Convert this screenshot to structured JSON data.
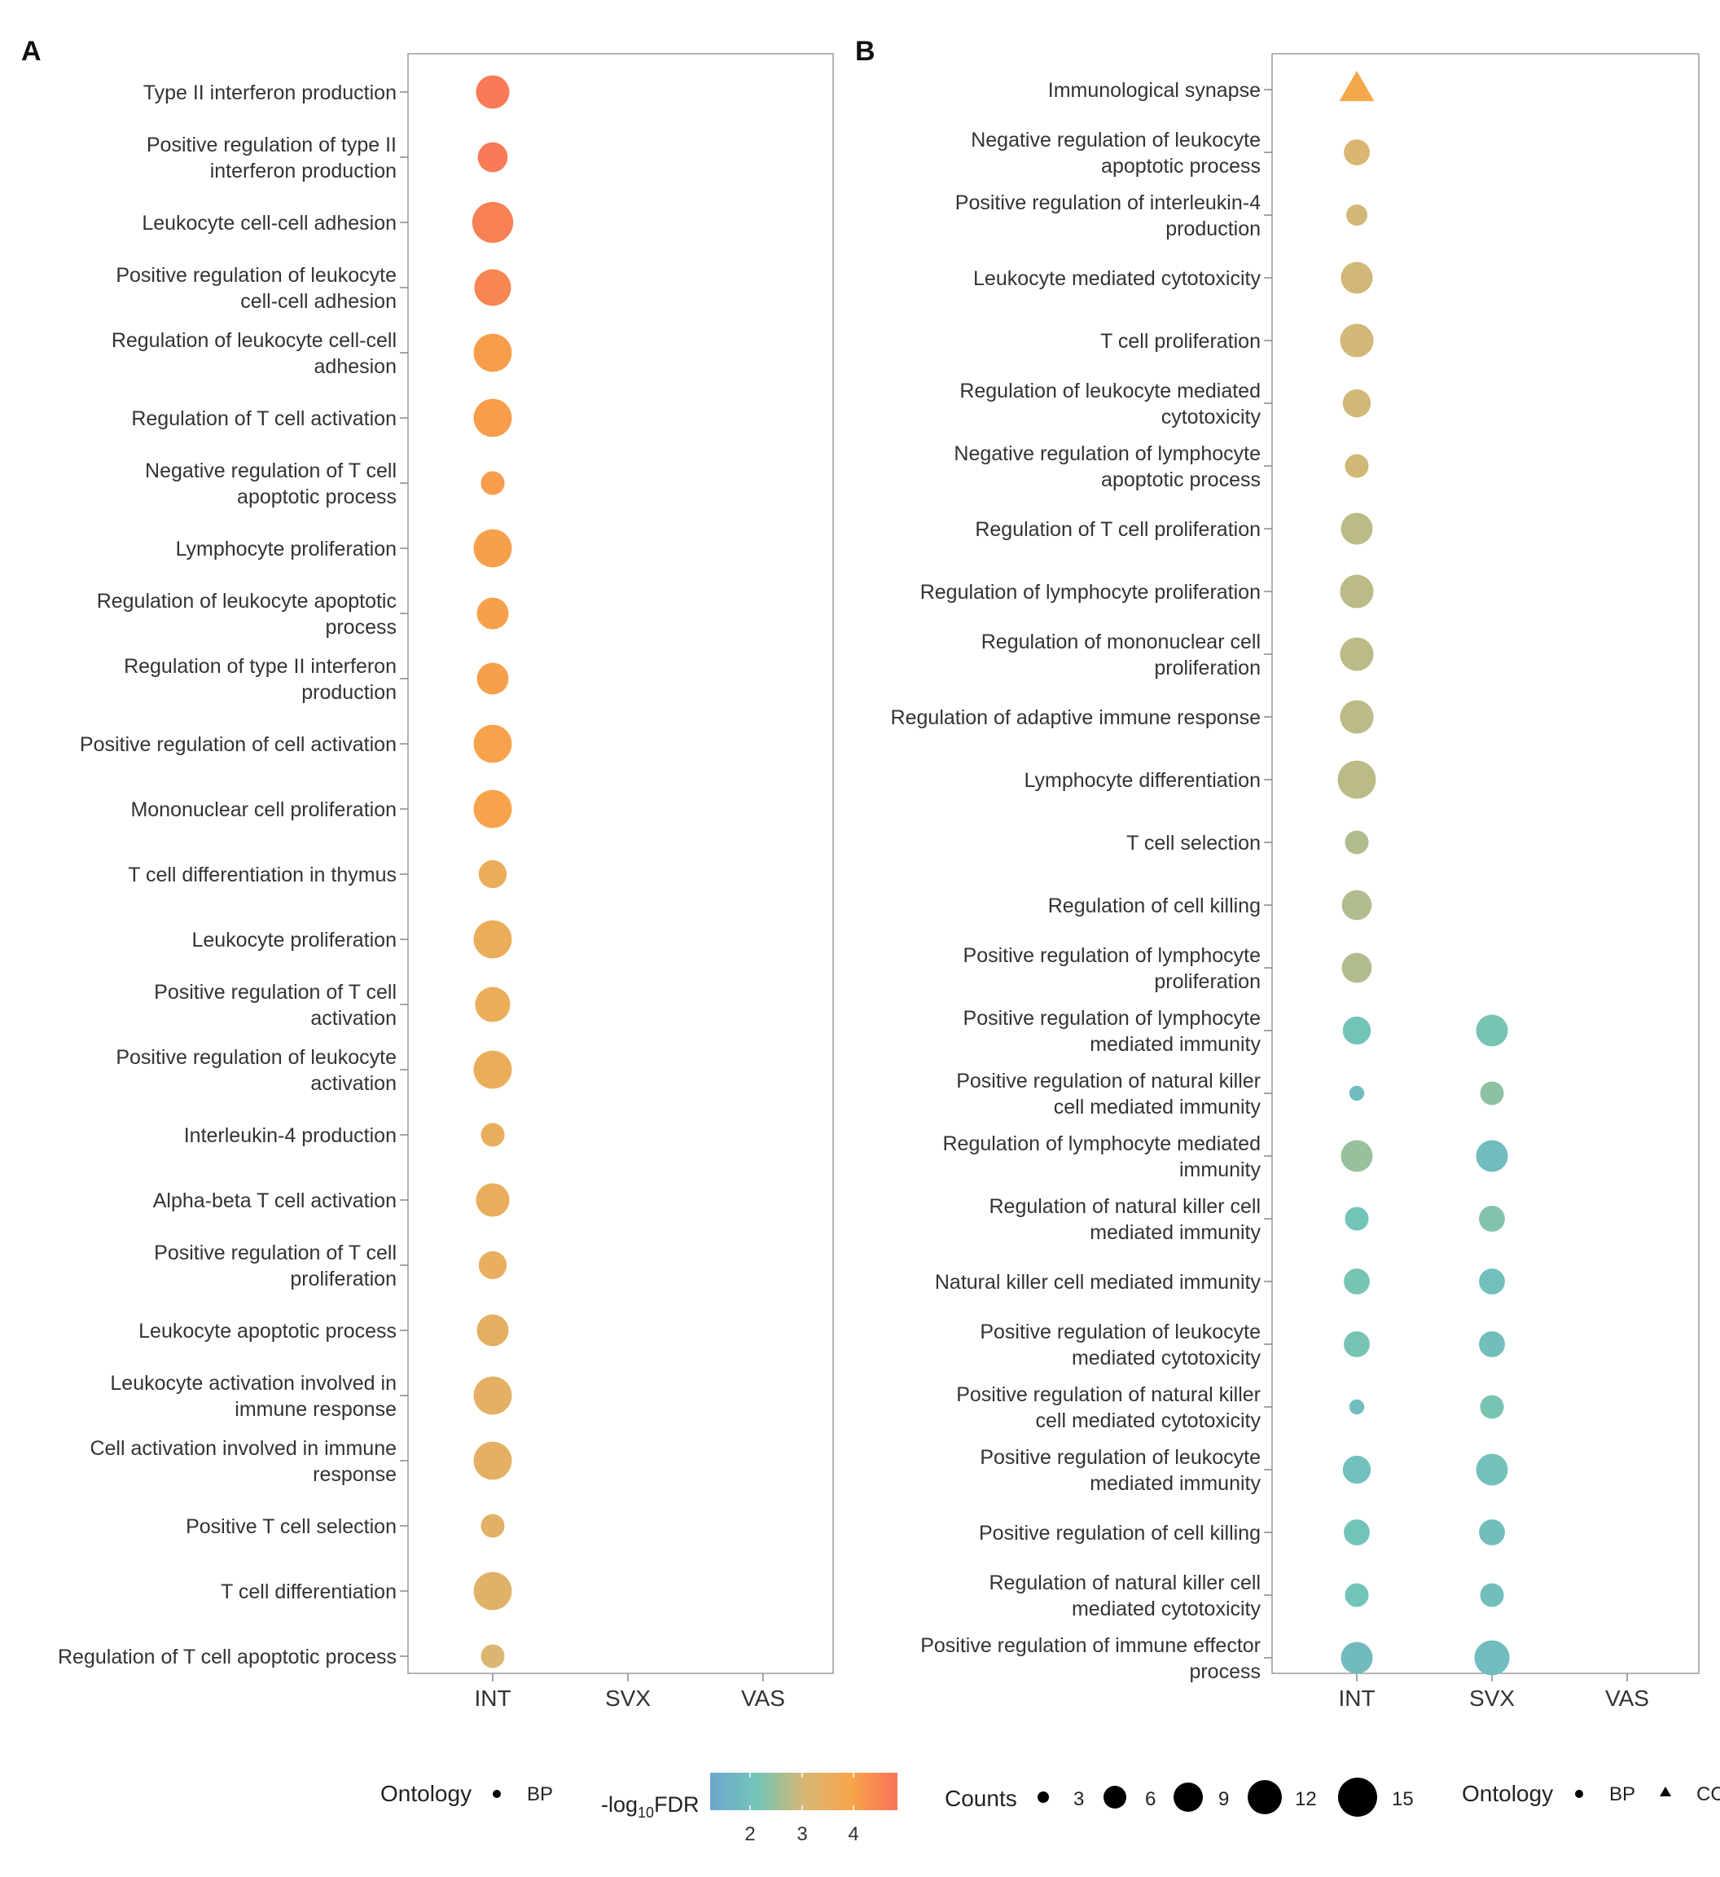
{
  "chart_data": [
    {
      "panel": "A",
      "type": "scatter",
      "x_categories": [
        "INT",
        "SVX",
        "VAS"
      ],
      "points": [
        {
          "term": "Type II interferon production",
          "x": "INT",
          "neglog10FDR": 4.7,
          "count": 10,
          "ontology": "BP"
        },
        {
          "term": "Positive regulation of type II interferon production",
          "x": "INT",
          "neglog10FDR": 4.7,
          "count": 8,
          "ontology": "BP"
        },
        {
          "term": "Leukocyte cell-cell adhesion",
          "x": "INT",
          "neglog10FDR": 4.6,
          "count": 15,
          "ontology": "BP"
        },
        {
          "term": "Positive regulation of leukocyte cell-cell adhesion",
          "x": "INT",
          "neglog10FDR": 4.5,
          "count": 12,
          "ontology": "BP"
        },
        {
          "term": "Regulation of leukocyte cell-cell adhesion",
          "x": "INT",
          "neglog10FDR": 4.1,
          "count": 13,
          "ontology": "BP"
        },
        {
          "term": "Regulation of T cell activation",
          "x": "INT",
          "neglog10FDR": 4.1,
          "count": 13,
          "ontology": "BP"
        },
        {
          "term": "Negative regulation of T cell apoptotic process",
          "x": "INT",
          "neglog10FDR": 4.1,
          "count": 5,
          "ontology": "BP"
        },
        {
          "term": "Lymphocyte proliferation",
          "x": "INT",
          "neglog10FDR": 4.05,
          "count": 13,
          "ontology": "BP"
        },
        {
          "term": "Regulation of leukocyte apoptotic process",
          "x": "INT",
          "neglog10FDR": 4.05,
          "count": 9,
          "ontology": "BP"
        },
        {
          "term": "Regulation of type II interferon production",
          "x": "INT",
          "neglog10FDR": 4.05,
          "count": 9,
          "ontology": "BP"
        },
        {
          "term": "Positive regulation of cell activation",
          "x": "INT",
          "neglog10FDR": 4.0,
          "count": 13,
          "ontology": "BP"
        },
        {
          "term": "Mononuclear cell proliferation",
          "x": "INT",
          "neglog10FDR": 4.0,
          "count": 13,
          "ontology": "BP"
        },
        {
          "term": "T cell differentiation in thymus",
          "x": "INT",
          "neglog10FDR": 3.6,
          "count": 7,
          "ontology": "BP"
        },
        {
          "term": "Leukocyte proliferation",
          "x": "INT",
          "neglog10FDR": 3.6,
          "count": 13,
          "ontology": "BP"
        },
        {
          "term": "Positive regulation of T cell activation",
          "x": "INT",
          "neglog10FDR": 3.6,
          "count": 11,
          "ontology": "BP"
        },
        {
          "term": "Positive regulation of leukocyte activation",
          "x": "INT",
          "neglog10FDR": 3.6,
          "count": 13,
          "ontology": "BP"
        },
        {
          "term": "Interleukin-4 production",
          "x": "INT",
          "neglog10FDR": 3.55,
          "count": 5,
          "ontology": "BP"
        },
        {
          "term": "Alpha-beta T cell activation",
          "x": "INT",
          "neglog10FDR": 3.55,
          "count": 10,
          "ontology": "BP"
        },
        {
          "term": "Positive regulation of T cell proliferation",
          "x": "INT",
          "neglog10FDR": 3.5,
          "count": 7,
          "ontology": "BP"
        },
        {
          "term": "Leukocyte apoptotic process",
          "x": "INT",
          "neglog10FDR": 3.45,
          "count": 9,
          "ontology": "BP"
        },
        {
          "term": "Leukocyte activation involved in immune response",
          "x": "INT",
          "neglog10FDR": 3.4,
          "count": 13,
          "ontology": "BP"
        },
        {
          "term": "Cell activation involved in immune response",
          "x": "INT",
          "neglog10FDR": 3.4,
          "count": 13,
          "ontology": "BP"
        },
        {
          "term": "Positive T cell selection",
          "x": "INT",
          "neglog10FDR": 3.35,
          "count": 5,
          "ontology": "BP"
        },
        {
          "term": "T cell differentiation",
          "x": "INT",
          "neglog10FDR": 3.3,
          "count": 13,
          "ontology": "BP"
        },
        {
          "term": "Regulation of T cell apoptotic process",
          "x": "INT",
          "neglog10FDR": 3.1,
          "count": 5,
          "ontology": "BP"
        }
      ]
    },
    {
      "panel": "B",
      "type": "scatter",
      "x_categories": [
        "INT",
        "SVX",
        "VAS"
      ],
      "points": [
        {
          "term": "Immunological synapse",
          "x": "INT",
          "neglog10FDR": 3.9,
          "count": 9,
          "ontology": "CC"
        },
        {
          "term": "Negative regulation of leukocyte apoptotic process",
          "x": "INT",
          "neglog10FDR": 3.1,
          "count": 6,
          "ontology": "BP"
        },
        {
          "term": "Positive regulation of interleukin-4 production",
          "x": "INT",
          "neglog10FDR": 3.0,
          "count": 4,
          "ontology": "BP"
        },
        {
          "term": "Leukocyte mediated cytotoxicity",
          "x": "INT",
          "neglog10FDR": 3.0,
          "count": 9,
          "ontology": "BP"
        },
        {
          "term": "T cell proliferation",
          "x": "INT",
          "neglog10FDR": 3.0,
          "count": 10,
          "ontology": "BP"
        },
        {
          "term": "Regulation of leukocyte mediated cytotoxicity",
          "x": "INT",
          "neglog10FDR": 3.0,
          "count": 7,
          "ontology": "BP"
        },
        {
          "term": "Negative regulation of lymphocyte apoptotic process",
          "x": "INT",
          "neglog10FDR": 3.0,
          "count": 5,
          "ontology": "BP"
        },
        {
          "term": "Regulation of T cell proliferation",
          "x": "INT",
          "neglog10FDR": 2.8,
          "count": 9,
          "ontology": "BP"
        },
        {
          "term": "Regulation of lymphocyte proliferation",
          "x": "INT",
          "neglog10FDR": 2.8,
          "count": 10,
          "ontology": "BP"
        },
        {
          "term": "Regulation of mononuclear cell proliferation",
          "x": "INT",
          "neglog10FDR": 2.8,
          "count": 10,
          "ontology": "BP"
        },
        {
          "term": "Regulation of adaptive immune response",
          "x": "INT",
          "neglog10FDR": 2.8,
          "count": 10,
          "ontology": "BP"
        },
        {
          "term": "Lymphocyte differentiation",
          "x": "INT",
          "neglog10FDR": 2.8,
          "count": 13,
          "ontology": "BP"
        },
        {
          "term": "T cell selection",
          "x": "INT",
          "neglog10FDR": 2.7,
          "count": 5,
          "ontology": "BP"
        },
        {
          "term": "Regulation of cell killing",
          "x": "INT",
          "neglog10FDR": 2.7,
          "count": 8,
          "ontology": "BP"
        },
        {
          "term": "Positive regulation of lymphocyte proliferation",
          "x": "INT",
          "neglog10FDR": 2.7,
          "count": 8,
          "ontology": "BP"
        },
        {
          "term": "Positive regulation of lymphocyte mediated immunity",
          "x": "INT",
          "neglog10FDR": 2.1,
          "count": 7,
          "ontology": "BP"
        },
        {
          "term": "Positive regulation of lymphocyte mediated immunity",
          "x": "SVX",
          "neglog10FDR": 2.2,
          "count": 9,
          "ontology": "BP"
        },
        {
          "term": "Positive regulation of natural killer cell mediated immunity",
          "x": "INT",
          "neglog10FDR": 1.9,
          "count": 2,
          "ontology": "BP"
        },
        {
          "term": "Positive regulation of natural killer cell mediated immunity",
          "x": "SVX",
          "neglog10FDR": 2.4,
          "count": 5,
          "ontology": "BP"
        },
        {
          "term": "Regulation of lymphocyte mediated immunity",
          "x": "INT",
          "neglog10FDR": 2.5,
          "count": 9,
          "ontology": "BP"
        },
        {
          "term": "Regulation of lymphocyte mediated immunity",
          "x": "SVX",
          "neglog10FDR": 1.9,
          "count": 9,
          "ontology": "BP"
        },
        {
          "term": "Regulation of natural killer cell mediated immunity",
          "x": "INT",
          "neglog10FDR": 2.1,
          "count": 5,
          "ontology": "BP"
        },
        {
          "term": "Regulation of natural killer cell mediated immunity",
          "x": "SVX",
          "neglog10FDR": 2.3,
          "count": 6,
          "ontology": "BP"
        },
        {
          "term": "Natural killer cell mediated immunity",
          "x": "INT",
          "neglog10FDR": 2.2,
          "count": 6,
          "ontology": "BP"
        },
        {
          "term": "Natural killer cell mediated immunity",
          "x": "SVX",
          "neglog10FDR": 2.0,
          "count": 6,
          "ontology": "BP"
        },
        {
          "term": "Positive regulation of leukocyte mediated cytotoxicity",
          "x": "INT",
          "neglog10FDR": 2.2,
          "count": 6,
          "ontology": "BP"
        },
        {
          "term": "Positive regulation of leukocyte mediated cytotoxicity",
          "x": "SVX",
          "neglog10FDR": 1.95,
          "count": 6,
          "ontology": "BP"
        },
        {
          "term": "Positive regulation of natural killer cell mediated cytotoxicity",
          "x": "INT",
          "neglog10FDR": 1.9,
          "count": 2,
          "ontology": "BP"
        },
        {
          "term": "Positive regulation of natural killer cell mediated cytotoxicity",
          "x": "SVX",
          "neglog10FDR": 2.2,
          "count": 5,
          "ontology": "BP"
        },
        {
          "term": "Positive regulation of leukocyte mediated immunity",
          "x": "INT",
          "neglog10FDR": 2.0,
          "count": 7,
          "ontology": "BP"
        },
        {
          "term": "Positive regulation of leukocyte mediated immunity",
          "x": "SVX",
          "neglog10FDR": 2.05,
          "count": 9,
          "ontology": "BP"
        },
        {
          "term": "Positive regulation of cell killing",
          "x": "INT",
          "neglog10FDR": 2.1,
          "count": 6,
          "ontology": "BP"
        },
        {
          "term": "Positive regulation of cell killing",
          "x": "SVX",
          "neglog10FDR": 1.95,
          "count": 6,
          "ontology": "BP"
        },
        {
          "term": "Regulation of natural killer cell mediated cytotoxicity",
          "x": "INT",
          "neglog10FDR": 2.1,
          "count": 5,
          "ontology": "BP"
        },
        {
          "term": "Regulation of natural killer cell mediated cytotoxicity",
          "x": "SVX",
          "neglog10FDR": 1.95,
          "count": 5,
          "ontology": "BP"
        },
        {
          "term": "Positive regulation of immune effector process",
          "x": "INT",
          "neglog10FDR": 1.85,
          "count": 9,
          "ontology": "BP"
        },
        {
          "term": "Positive regulation of immune effector process",
          "x": "SVX",
          "neglog10FDR": 1.9,
          "count": 11,
          "ontology": "BP"
        }
      ]
    }
  ],
  "panels": {
    "a": {
      "letter": "A",
      "rows": [
        [
          "Type II interferon production"
        ],
        [
          "Positive regulation of type II",
          "interferon production"
        ],
        [
          "Leukocyte cell-cell adhesion"
        ],
        [
          "Positive regulation of leukocyte",
          "cell-cell adhesion"
        ],
        [
          "Regulation of leukocyte cell-cell",
          "adhesion"
        ],
        [
          "Regulation of T cell activation"
        ],
        [
          "Negative regulation of T cell",
          "apoptotic process"
        ],
        [
          "Lymphocyte proliferation"
        ],
        [
          "Regulation of leukocyte apoptotic",
          "process"
        ],
        [
          "Regulation of type II interferon",
          "production"
        ],
        [
          "Positive regulation of cell activation"
        ],
        [
          "Mononuclear cell proliferation"
        ],
        [
          "T cell differentiation in thymus"
        ],
        [
          "Leukocyte proliferation"
        ],
        [
          "Positive regulation of T cell",
          "activation"
        ],
        [
          "Positive regulation of leukocyte",
          "activation"
        ],
        [
          "Interleukin-4 production"
        ],
        [
          "Alpha-beta T cell activation"
        ],
        [
          "Positive regulation of T cell",
          "proliferation"
        ],
        [
          "Leukocyte apoptotic process"
        ],
        [
          "Leukocyte activation involved in",
          "immune response"
        ],
        [
          "Cell activation involved in immune",
          "response"
        ],
        [
          "Positive T cell selection"
        ],
        [
          "T cell differentiation"
        ],
        [
          "Regulation of T cell apoptotic process"
        ]
      ]
    },
    "b": {
      "letter": "B",
      "rows": [
        [
          "Immunological synapse"
        ],
        [
          "Negative regulation of leukocyte",
          "apoptotic process"
        ],
        [
          "Positive regulation of interleukin-4",
          "production"
        ],
        [
          "Leukocyte mediated cytotoxicity"
        ],
        [
          "T cell proliferation"
        ],
        [
          "Regulation of leukocyte mediated",
          "cytotoxicity"
        ],
        [
          "Negative regulation of lymphocyte",
          "apoptotic process"
        ],
        [
          "Regulation of T cell proliferation"
        ],
        [
          "Regulation of lymphocyte proliferation"
        ],
        [
          "Regulation of mononuclear cell",
          "proliferation"
        ],
        [
          "Regulation of adaptive immune response"
        ],
        [
          "Lymphocyte differentiation"
        ],
        [
          "T cell selection"
        ],
        [
          "Regulation of cell killing"
        ],
        [
          "Positive regulation of lymphocyte",
          "proliferation"
        ],
        [
          "Positive regulation of lymphocyte",
          "mediated immunity"
        ],
        [
          "Positive regulation of natural killer",
          "cell mediated immunity"
        ],
        [
          "Regulation of lymphocyte mediated",
          "immunity"
        ],
        [
          "Regulation of natural killer cell",
          "mediated immunity"
        ],
        [
          "Natural killer cell mediated immunity"
        ],
        [
          "Positive regulation of leukocyte",
          "mediated cytotoxicity"
        ],
        [
          "Positive regulation of natural killer",
          "cell mediated cytotoxicity"
        ],
        [
          "Positive regulation of leukocyte",
          "mediated immunity"
        ],
        [
          "Positive regulation of cell killing"
        ],
        [
          "Regulation of natural killer cell",
          "mediated cytotoxicity"
        ],
        [
          "Positive regulation of immune effector",
          "process"
        ]
      ]
    }
  },
  "legend": {
    "ontology_left": {
      "title": "Ontology",
      "items": [
        "BP"
      ]
    },
    "color": {
      "title": "-log",
      "subscript": "10",
      "suffix": "FDR",
      "ticks": [
        "2",
        "3",
        "4"
      ],
      "stops": [
        "#6ea6cf",
        "#72c5b7",
        "#d7b774",
        "#f7a64a",
        "#f87159"
      ]
    },
    "counts": {
      "title": "Counts",
      "values": [
        "3",
        "6",
        "9",
        "12",
        "15"
      ]
    },
    "ontology_right": {
      "title": "Ontology",
      "items": [
        "BP",
        "CC"
      ]
    }
  }
}
